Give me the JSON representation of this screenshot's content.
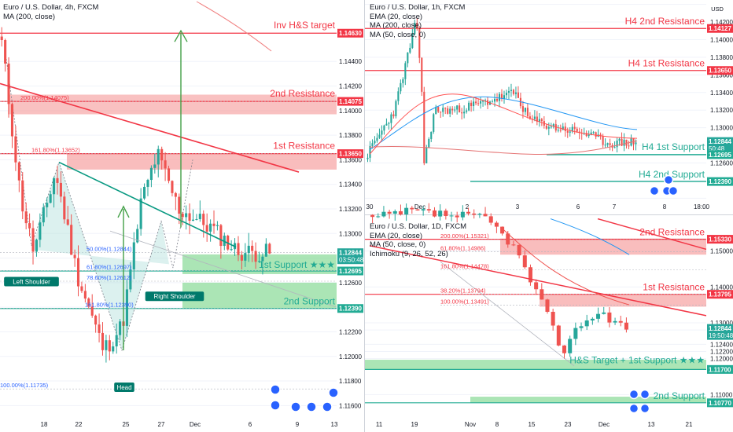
{
  "chart_data": [
    {
      "type": "candlestick",
      "symbol": "Euro / U.S. Dollar, 4h, FXCM",
      "indicators": [
        "MA (200, close)"
      ],
      "y_range": [
        1.115,
        1.149
      ],
      "price_ticks": [
        "1.14400",
        "1.14200",
        "1.14000",
        "1.13800",
        "1.13600",
        "1.13400",
        "1.13200",
        "1.13000",
        "1.12800",
        "1.12600",
        "1.12400",
        "1.12200",
        "1.12000",
        "1.11800",
        "1.11600"
      ],
      "x_ticks": [
        "18",
        "22",
        "25",
        "27",
        "Dec",
        "6",
        "9",
        "13"
      ],
      "price_tags": [
        {
          "value": "1.14630",
          "color": "#f23645"
        },
        {
          "value": "1.14075",
          "color": "#f23645"
        },
        {
          "value": "1.13650",
          "color": "#f23645"
        },
        {
          "value": "1.12844",
          "color": "#26a69a",
          "sub": "03:50:48"
        },
        {
          "value": "1.12695",
          "color": "#22ab94"
        },
        {
          "value": "1.12390",
          "color": "#22ab94"
        }
      ],
      "levels": [
        {
          "label": "Inv H&S target",
          "value": 1.1463,
          "color": "#f23645"
        },
        {
          "label": "2nd Resistance",
          "value": 1.14075,
          "color": "#f23645"
        },
        {
          "label": "1st Resistance",
          "value": 1.1365,
          "color": "#f23645"
        },
        {
          "label": "1st Support ★★★",
          "value": 1.12695,
          "color": "#22ab94"
        },
        {
          "label": "2nd Support",
          "value": 1.1239,
          "color": "#22ab94"
        }
      ],
      "fib_labels": [
        "200.00%(1.14075)",
        "161.80%(1.13652)",
        "50.00%(1.12844)",
        "61.80%(1.12697)",
        "78.60%(1.12612)",
        "161.80%(1.12390)",
        "100.00%(1.11735)"
      ],
      "pattern_labels": [
        "Left Shoulder",
        "Head",
        "Right Shoulder"
      ]
    },
    {
      "type": "candlestick",
      "symbol": "Euro / U.S. Dollar, 1h, FXCM",
      "indicators": [
        "EMA (20, close)",
        "MA (200, close)",
        "MA (50, close, 0)"
      ],
      "y_range": [
        1.1215,
        1.1445
      ],
      "price_ticks": [
        "1.14400",
        "1.14200",
        "1.14000",
        "1.13800",
        "1.13600",
        "1.13400",
        "1.13200",
        "1.13000",
        "1.12800",
        "1.12600",
        "1.12400",
        "1.12200"
      ],
      "x_ticks": [
        "30",
        "Dec",
        "2",
        "3",
        "6",
        "7",
        "8",
        "18:00"
      ],
      "price_tags": [
        {
          "value": "1.14127",
          "color": "#f23645"
        },
        {
          "value": "1.13650",
          "color": "#f23645"
        },
        {
          "value": "1.12844",
          "color": "#26a69a",
          "sub": "50:48"
        },
        {
          "value": "1.12695",
          "color": "#22ab94"
        },
        {
          "value": "1.12390",
          "color": "#22ab94"
        }
      ],
      "levels": [
        {
          "label": "H4 2nd Resistance",
          "value": 1.14127,
          "color": "#f23645"
        },
        {
          "label": "H4 1st Resistance",
          "value": 1.1365,
          "color": "#f23645"
        },
        {
          "label": "H4 1st Support",
          "value": 1.12695,
          "color": "#22ab94"
        },
        {
          "label": "H4 2nd Support",
          "value": 1.1239,
          "color": "#22ab94"
        }
      ],
      "usd_label": "USD"
    },
    {
      "type": "candlestick",
      "symbol": "Euro / U.S. Dollar, 1D, FXCM",
      "indicators": [
        "EMA (20, close)",
        "MA (50, close, 0)",
        "Ichimoku (9, 26, 52, 26)"
      ],
      "y_range": [
        1.1035,
        1.16
      ],
      "price_ticks": [
        "1.15000",
        "1.14000",
        "1.13000",
        "1.12800",
        "1.12400",
        "1.12200",
        "1.12000",
        "1.11000"
      ],
      "x_ticks": [
        "11",
        "19",
        "Nov",
        "8",
        "15",
        "23",
        "Dec",
        "13",
        "21"
      ],
      "price_tags": [
        {
          "value": "1.15330",
          "color": "#f23645"
        },
        {
          "value": "1.13795",
          "color": "#f23645"
        },
        {
          "value": "1.12844",
          "color": "#26a69a",
          "sub": "19:50:48"
        },
        {
          "value": "1.11700",
          "color": "#22ab94"
        },
        {
          "value": "1.10770",
          "color": "#22ab94"
        }
      ],
      "levels": [
        {
          "label": "2nd Resistance",
          "value": 1.1533,
          "color": "#f23645"
        },
        {
          "label": "1st Resistance",
          "value": 1.13795,
          "color": "#f23645"
        },
        {
          "label": "H&S Target + 1st Support ★★★",
          "value": 1.117,
          "color": "#22ab94"
        },
        {
          "label": "2nd Support",
          "value": 1.1077,
          "color": "#22ab94"
        }
      ],
      "fib_labels": [
        "200.00%(1.15321)",
        "61.80%(1.14986)",
        "161.80%(1.14478)",
        "38.20%(1.13794)",
        "100.00%(1.13491)"
      ]
    }
  ]
}
